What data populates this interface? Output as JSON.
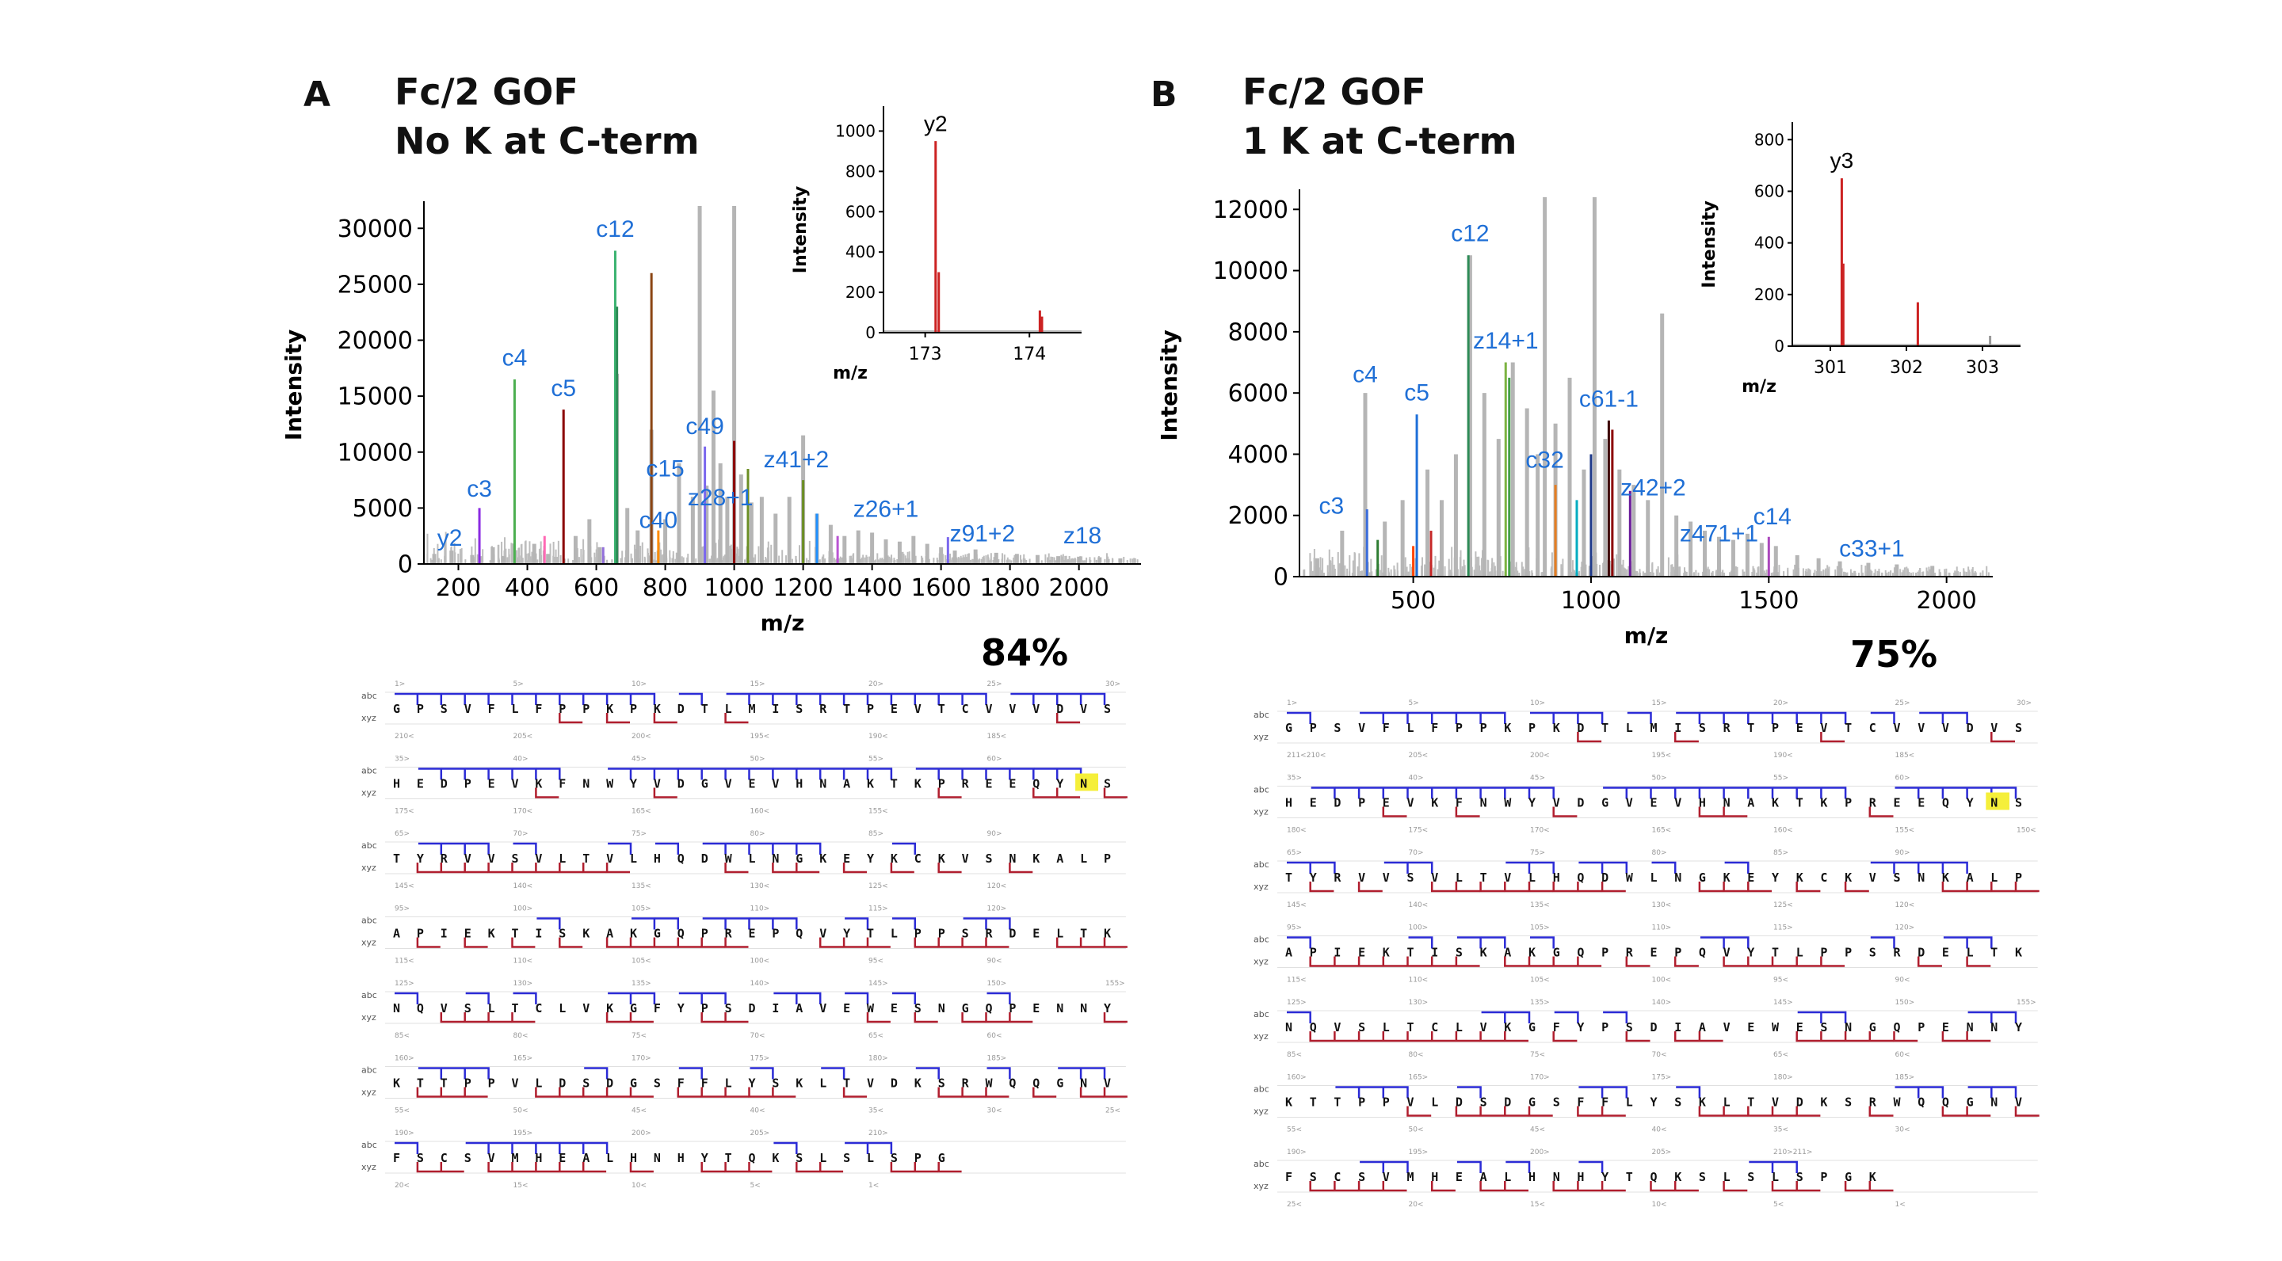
{
  "panels": [
    {
      "letter": "A",
      "title_line1": "Fc/2 GOF",
      "title_line2": "No K at C-term",
      "coverage": "84%",
      "sequence_rows": [
        "GPSVFLFPPKPKDTLMISRTPEVTCVVVDVS",
        "HEDPEVKFNWYVDGVEVHNAKTKPREEQYNS",
        "TYRVVSVLTVLHQDWLNGKEYKCKVSNKALP",
        "APIEKTISKAKGQPREPQVYTLPPSRDELTK",
        "NQVSLTCLVKGFYPSDIAVEWESNGQPENNY",
        "KTTPPVLDSDGSFFLYSKLTVDKSRWQQGNV",
        "FSCSVMHEALHNHYTQKSLSLSPG"
      ],
      "highlight": {
        "row": 1,
        "index": 29,
        "residue": "N"
      },
      "top_numbers": [
        [
          "1>",
          "5>",
          "10>",
          "15>",
          "20>",
          "25>",
          "30>"
        ],
        [
          "35>",
          "40>",
          "45>",
          "50>",
          "55>",
          "60>"
        ],
        [
          "65>",
          "70>",
          "75>",
          "80>",
          "85>",
          "90>"
        ],
        [
          "95>",
          "100>",
          "105>",
          "110>",
          "115>",
          "120>"
        ],
        [
          "125>",
          "130>",
          "135>",
          "140>",
          "145>",
          "150>",
          "155>"
        ],
        [
          "160>",
          "165>",
          "170>",
          "175>",
          "180>",
          "185>"
        ],
        [
          "190>",
          "195>",
          "200>",
          "205>",
          "210>"
        ]
      ],
      "bottom_numbers": [
        [
          "210<",
          "205<",
          "200<",
          "195<",
          "190<",
          "185<"
        ],
        [
          "175<",
          "170<",
          "165<",
          "160<",
          "155<"
        ],
        [
          "145<",
          "140<",
          "135<",
          "130<",
          "125<",
          "120<"
        ],
        [
          "115<",
          "110<",
          "105<",
          "100<",
          "95<",
          "90<"
        ],
        [
          "85<",
          "80<",
          "75<",
          "70<",
          "65<",
          "60<"
        ],
        [
          "55<",
          "50<",
          "45<",
          "40<",
          "35<",
          "30<",
          "25<"
        ],
        [
          "20<",
          "15<",
          "10<",
          "5<",
          "1<"
        ]
      ],
      "side_labels": {
        "top": "abc",
        "bottom": "xyz"
      }
    },
    {
      "letter": "B",
      "title_line1": "Fc/2 GOF",
      "title_line2": "1 K at C-term",
      "coverage": "75%",
      "sequence_rows": [
        "GPSVFLFPPKPKDTLMISRTPEVTCVVVDVS",
        "HEDPEVKFNWYVDGVEVHNAKTKPREEQYNS",
        "TYRVVSVLTVLHQDWLNGKEYKCKVSNKALP",
        "APIEKTISKAKGQPREPQVYTLPPSRDELTK",
        "NQVSLTCLVKGFYPSDIAVEWESNGQPENNY",
        "KTTPPVLDSDGSFFLYSKLTVDKSRWQQGNV",
        "FSCSVMHEALHNHYTQKSLSLSPGK"
      ],
      "highlight": {
        "row": 1,
        "index": 29,
        "residue": "N"
      },
      "top_numbers": [
        [
          "1>",
          "5>",
          "10>",
          "15>",
          "20>",
          "25>",
          "30>"
        ],
        [
          "35>",
          "40>",
          "45>",
          "50>",
          "55>",
          "60>"
        ],
        [
          "65>",
          "70>",
          "75>",
          "80>",
          "85>",
          "90>"
        ],
        [
          "95>",
          "100>",
          "105>",
          "110>",
          "115>",
          "120>"
        ],
        [
          "125>",
          "130>",
          "135>",
          "140>",
          "145>",
          "150>",
          "155>"
        ],
        [
          "160>",
          "165>",
          "170>",
          "175>",
          "180>",
          "185>"
        ],
        [
          "190>",
          "195>",
          "200>",
          "205>",
          "210>211>"
        ]
      ],
      "bottom_numbers": [
        [
          "211<210<",
          "205<",
          "200<",
          "195<",
          "190<",
          "185<"
        ],
        [
          "180<",
          "175<",
          "170<",
          "165<",
          "160<",
          "155<",
          "150<"
        ],
        [
          "145<",
          "140<",
          "135<",
          "130<",
          "125<",
          "120<"
        ],
        [
          "115<",
          "110<",
          "105<",
          "100<",
          "95<",
          "90<"
        ],
        [
          "85<",
          "80<",
          "75<",
          "70<",
          "65<",
          "60<"
        ],
        [
          "55<",
          "50<",
          "45<",
          "40<",
          "35<",
          "30<"
        ],
        [
          "25<",
          "20<",
          "15<",
          "10<",
          "5<",
          "1<"
        ]
      ],
      "side_labels": {
        "top": "abc",
        "bottom": "xyz"
      }
    }
  ],
  "chart_data": [
    {
      "type": "bar",
      "panel": "A",
      "xlabel": "m/z",
      "ylabel": "Intensity",
      "xlim": [
        100,
        2180
      ],
      "ylim": [
        0,
        32000
      ],
      "xticks": [
        200,
        400,
        600,
        800,
        1000,
        1200,
        1400,
        1600,
        1800,
        2000
      ],
      "yticks": [
        0,
        5000,
        10000,
        15000,
        20000,
        25000,
        30000
      ],
      "grey_peaks": [
        [
          130,
          900
        ],
        [
          180,
          1200
        ],
        [
          240,
          800
        ],
        [
          300,
          1500
        ],
        [
          330,
          700
        ],
        [
          420,
          1800
        ],
        [
          460,
          900
        ],
        [
          540,
          2500
        ],
        [
          580,
          4000
        ],
        [
          610,
          1500
        ],
        [
          660,
          17000
        ],
        [
          690,
          5000
        ],
        [
          720,
          3000
        ],
        [
          760,
          12000
        ],
        [
          800,
          4000
        ],
        [
          840,
          9000
        ],
        [
          880,
          6000
        ],
        [
          900,
          32000
        ],
        [
          920,
          7000
        ],
        [
          940,
          15500
        ],
        [
          960,
          9000
        ],
        [
          980,
          6000
        ],
        [
          1000,
          32000
        ],
        [
          1020,
          8000
        ],
        [
          1050,
          5500
        ],
        [
          1080,
          6000
        ],
        [
          1120,
          4500
        ],
        [
          1160,
          6000
        ],
        [
          1200,
          11500
        ],
        [
          1240,
          4500
        ],
        [
          1280,
          3500
        ],
        [
          1320,
          2500
        ],
        [
          1360,
          3000
        ],
        [
          1400,
          2800
        ],
        [
          1440,
          2200
        ],
        [
          1480,
          2000
        ],
        [
          1520,
          2500
        ],
        [
          1560,
          1800
        ],
        [
          1600,
          1500
        ],
        [
          1640,
          1200
        ],
        [
          1700,
          1300
        ],
        [
          1760,
          1000
        ],
        [
          1820,
          900
        ],
        [
          1880,
          800
        ],
        [
          1940,
          700
        ],
        [
          2000,
          650
        ],
        [
          2060,
          600
        ],
        [
          2120,
          500
        ]
      ],
      "colored_peaks": [
        [
          261,
          5000,
          "#8a2be2"
        ],
        [
          363,
          16500,
          "#4caf50"
        ],
        [
          505,
          13800,
          "#8b0000"
        ],
        [
          655,
          28000,
          "#3cb371"
        ],
        [
          660,
          23000,
          "#2e8b57"
        ],
        [
          760,
          26000,
          "#8b4513"
        ],
        [
          915,
          10500,
          "#7b68ee"
        ],
        [
          1000,
          11000,
          "#8b0000"
        ],
        [
          1040,
          8500,
          "#6b8e23"
        ],
        [
          1200,
          7500,
          "#6b8e23"
        ],
        [
          1240,
          4500,
          "#1e90ff"
        ],
        [
          1620,
          2400,
          "#7b68ee"
        ],
        [
          450,
          2500,
          "#ff69b4"
        ],
        [
          620,
          1500,
          "#9370db"
        ],
        [
          780,
          3000,
          "#ff8c00"
        ],
        [
          1300,
          2500,
          "#ba55d3"
        ]
      ],
      "annotations": [
        {
          "label": "y2",
          "x": 175,
          "y": 1200
        },
        {
          "label": "c3",
          "x": 261,
          "y": 5600
        },
        {
          "label": "c4",
          "x": 363,
          "y": 17300
        },
        {
          "label": "c5",
          "x": 505,
          "y": 14600
        },
        {
          "label": "c12",
          "x": 655,
          "y": 28800
        },
        {
          "label": "c15",
          "x": 800,
          "y": 7400
        },
        {
          "label": "c40",
          "x": 780,
          "y": 2800
        },
        {
          "label": "c49",
          "x": 915,
          "y": 11200
        },
        {
          "label": "z28+1",
          "x": 960,
          "y": 4800
        },
        {
          "label": "z41+2",
          "x": 1180,
          "y": 8200
        },
        {
          "label": "z26+1",
          "x": 1440,
          "y": 3800
        },
        {
          "label": "z91+2",
          "x": 1720,
          "y": 1600
        },
        {
          "label": "z18",
          "x": 2010,
          "y": 1400
        }
      ],
      "inset": {
        "xlabel": "m/z",
        "ylabel": "Intensity",
        "xlim": [
          172.6,
          174.5
        ],
        "ylim": [
          0,
          1100
        ],
        "xticks": [
          173,
          174
        ],
        "yticks": [
          0,
          200,
          400,
          600,
          800,
          1000
        ],
        "peaks": [
          [
            173.1,
            950,
            "#cc2222"
          ],
          [
            173.13,
            300,
            "#cc2222"
          ],
          [
            174.1,
            110,
            "#cc2222"
          ],
          [
            174.12,
            80,
            "#cc2222"
          ]
        ],
        "annotation": {
          "label": "y2",
          "x": 173.1,
          "y": 1000
        }
      }
    },
    {
      "type": "bar",
      "panel": "B",
      "xlabel": "m/z",
      "ylabel": "Intensity",
      "xlim": [
        180,
        2130
      ],
      "ylim": [
        0,
        12500
      ],
      "xticks": [
        500,
        1000,
        1500,
        2000
      ],
      "yticks": [
        0,
        2000,
        4000,
        6000,
        8000,
        10000,
        12000
      ],
      "grey_peaks": [
        [
          230,
          600
        ],
        [
          300,
          1500
        ],
        [
          365,
          6000
        ],
        [
          420,
          1800
        ],
        [
          470,
          2500
        ],
        [
          540,
          3500
        ],
        [
          580,
          2500
        ],
        [
          620,
          4000
        ],
        [
          660,
          10500
        ],
        [
          700,
          6000
        ],
        [
          740,
          4500
        ],
        [
          780,
          7000
        ],
        [
          820,
          5500
        ],
        [
          850,
          4000
        ],
        [
          870,
          12400
        ],
        [
          900,
          5000
        ],
        [
          940,
          6500
        ],
        [
          980,
          3500
        ],
        [
          1010,
          12400
        ],
        [
          1040,
          4500
        ],
        [
          1080,
          3500
        ],
        [
          1120,
          3000
        ],
        [
          1160,
          2500
        ],
        [
          1200,
          8600
        ],
        [
          1240,
          2000
        ],
        [
          1280,
          1800
        ],
        [
          1320,
          1500
        ],
        [
          1360,
          1300
        ],
        [
          1400,
          1200
        ],
        [
          1440,
          1400
        ],
        [
          1480,
          1100
        ],
        [
          1520,
          1000
        ],
        [
          1580,
          700
        ],
        [
          1640,
          600
        ],
        [
          1700,
          500
        ],
        [
          1780,
          450
        ],
        [
          1860,
          400
        ],
        [
          1960,
          350
        ]
      ],
      "colored_peaks": [
        [
          370,
          2200,
          "#3b6ddc"
        ],
        [
          510,
          5300,
          "#1e6fd9"
        ],
        [
          500,
          1000,
          "#ff4500"
        ],
        [
          655,
          10500,
          "#2e8b57"
        ],
        [
          760,
          7000,
          "#7cb342"
        ],
        [
          770,
          6500,
          "#43a047"
        ],
        [
          1000,
          4000,
          "#1e3a8a"
        ],
        [
          1050,
          5100,
          "#3d0000"
        ],
        [
          1060,
          4800,
          "#8b0000"
        ],
        [
          900,
          3000,
          "#e67e22"
        ],
        [
          960,
          2500,
          "#00acc1"
        ],
        [
          1110,
          2800,
          "#6a1b9a"
        ],
        [
          1500,
          1300,
          "#ab47bc"
        ],
        [
          400,
          1200,
          "#2e7d32"
        ],
        [
          550,
          1500,
          "#c62828"
        ]
      ],
      "annotations": [
        {
          "label": "c3",
          "x": 270,
          "y": 1900
        },
        {
          "label": "c4",
          "x": 365,
          "y": 6200
        },
        {
          "label": "c5",
          "x": 510,
          "y": 5600
        },
        {
          "label": "c12",
          "x": 660,
          "y": 10800
        },
        {
          "label": "z14+1",
          "x": 760,
          "y": 7300
        },
        {
          "label": "c32",
          "x": 870,
          "y": 3400
        },
        {
          "label": "c61-1",
          "x": 1050,
          "y": 5400
        },
        {
          "label": "z42+2",
          "x": 1175,
          "y": 2500
        },
        {
          "label": "z471+1",
          "x": 1360,
          "y": 1000
        },
        {
          "label": "c14",
          "x": 1510,
          "y": 1550
        },
        {
          "label": "c33+1",
          "x": 1790,
          "y": 500
        }
      ],
      "inset": {
        "xlabel": "m/z",
        "ylabel": "Intensity",
        "xlim": [
          300.5,
          303.5
        ],
        "ylim": [
          0,
          850
        ],
        "xticks": [
          301,
          302,
          303
        ],
        "yticks": [
          0,
          200,
          400,
          600,
          800
        ],
        "peaks": [
          [
            301.15,
            650,
            "#cc2222"
          ],
          [
            301.17,
            320,
            "#cc2222"
          ],
          [
            302.15,
            170,
            "#cc2222"
          ],
          [
            303.1,
            40,
            "#999999"
          ]
        ],
        "annotation": {
          "label": "y3",
          "x": 301.15,
          "y": 690
        }
      }
    }
  ]
}
